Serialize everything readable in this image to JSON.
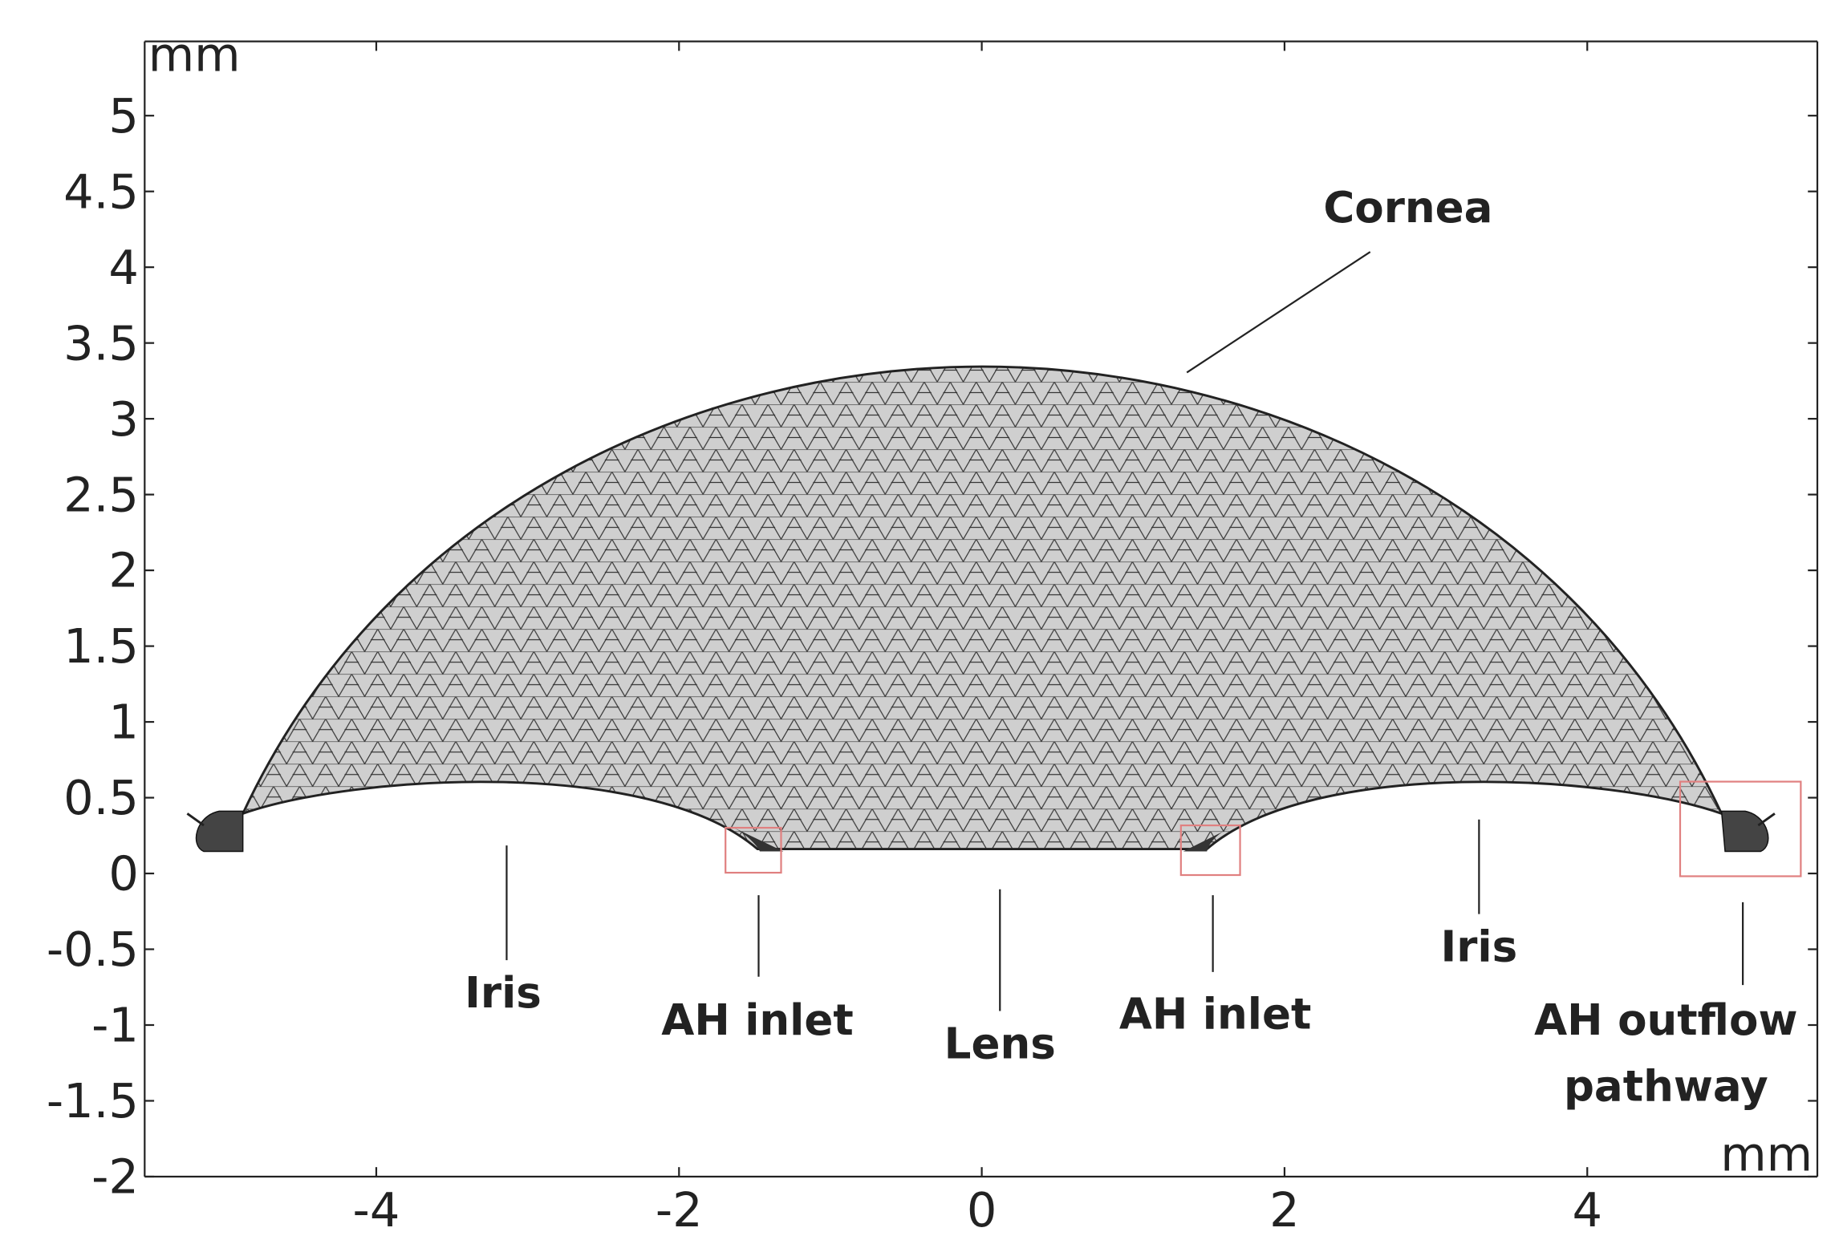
{
  "chart_data": {
    "type": "mesh",
    "x_label": "mm",
    "y_label": "mm",
    "xlim": [
      -5.53,
      5.52
    ],
    "ylim": [
      -2,
      5.49
    ],
    "xticks": [
      -4,
      -2,
      0,
      2,
      4
    ],
    "yticks": [
      -2,
      -1.5,
      -1,
      -0.5,
      0,
      0.5,
      1,
      1.5,
      2,
      2.5,
      3,
      3.5,
      4,
      4.5,
      5
    ],
    "annotations": [
      {
        "text": "Cornea"
      },
      {
        "text": "Iris"
      },
      {
        "text": "AH inlet"
      },
      {
        "text": "Lens"
      },
      {
        "text": "AH inlet"
      },
      {
        "text": "Iris"
      },
      {
        "text": [
          "AH outflow",
          "pathway"
        ]
      }
    ]
  }
}
